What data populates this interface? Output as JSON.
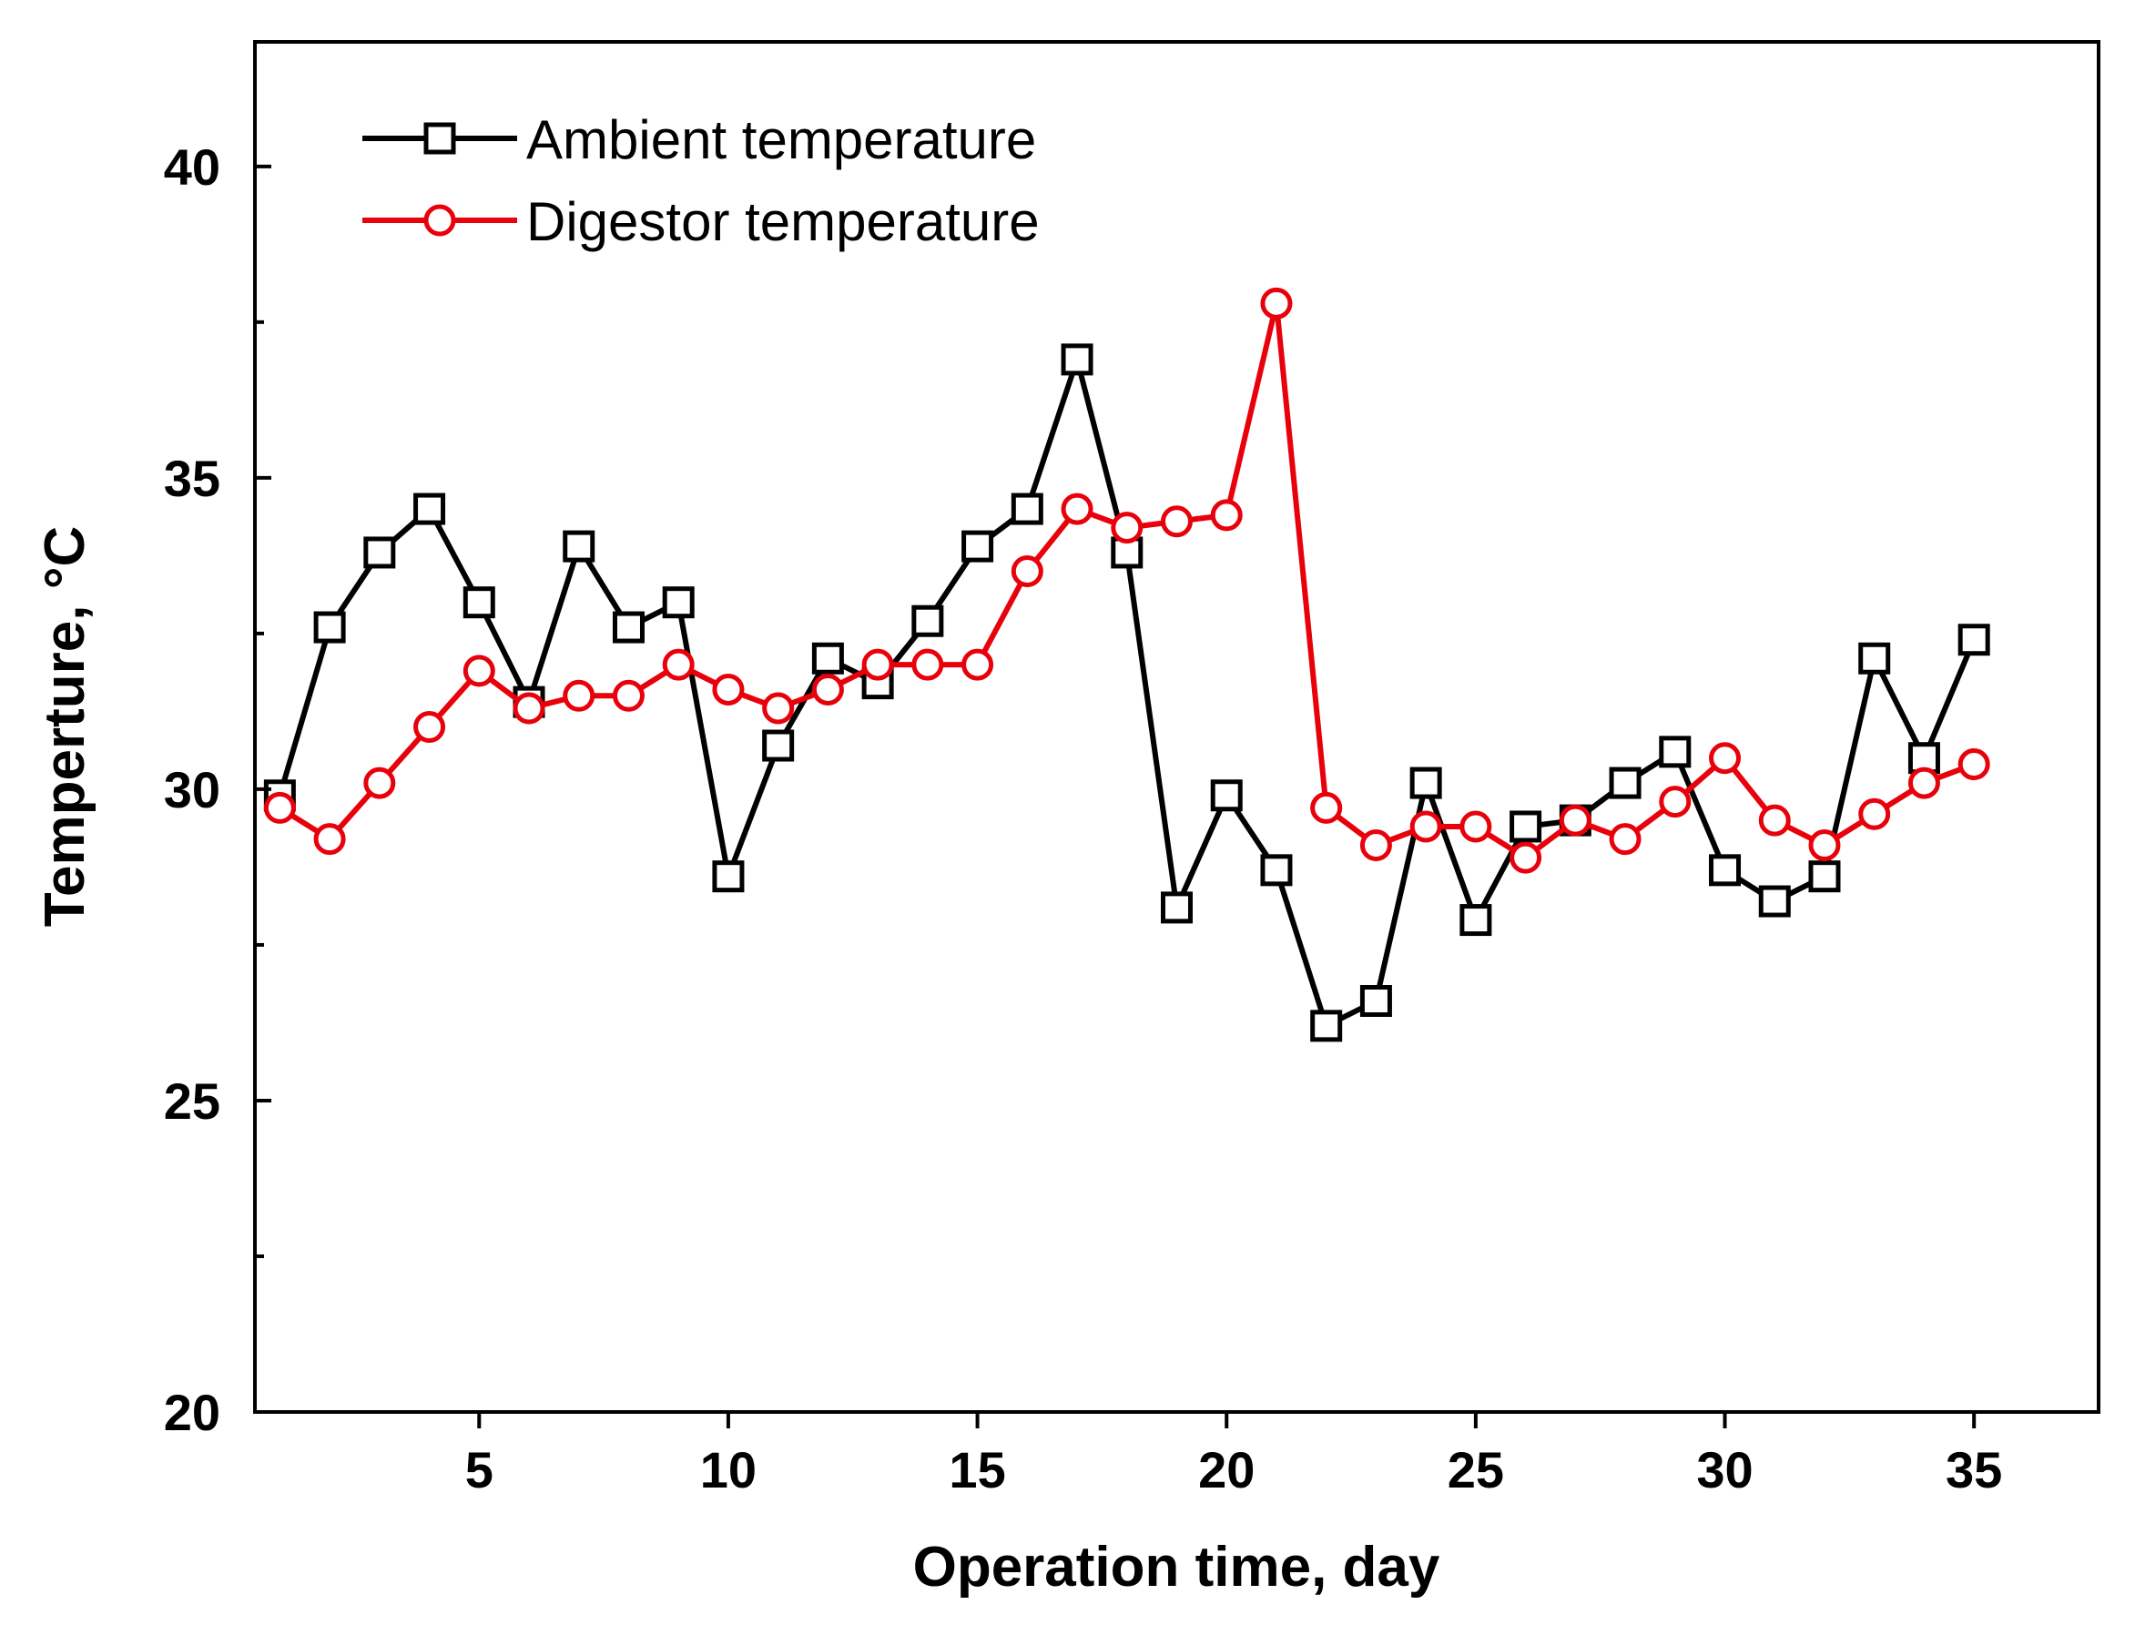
{
  "chart_data": {
    "type": "line",
    "title": "",
    "xlabel": "Operation time, day",
    "ylabel": "Temperture, °C",
    "xlim": [
      0.5,
      37.5
    ],
    "ylim": [
      20,
      42
    ],
    "xticks": [
      5,
      10,
      15,
      20,
      25,
      30,
      35
    ],
    "xtick_labels": [
      "5",
      "10",
      "15",
      "20",
      "25",
      "30",
      "35"
    ],
    "yticks": [
      20,
      25,
      30,
      35,
      40
    ],
    "ytick_labels": [
      "20",
      "25",
      "30",
      "35",
      "40"
    ],
    "y_minor_ticks": [
      22.5,
      27.5,
      32.5,
      37.5
    ],
    "legend_position": "top-left",
    "x": [
      1,
      2,
      3,
      4,
      5,
      6,
      7,
      8,
      9,
      10,
      11,
      12,
      13,
      14,
      15,
      16,
      17,
      18,
      19,
      20,
      21,
      22,
      23,
      24,
      25,
      26,
      27,
      28,
      29,
      30,
      31,
      32,
      33,
      34,
      35
    ],
    "series": [
      {
        "name": "Ambient temperature",
        "color": "#000000",
        "marker": "square",
        "values": [
          29.9,
          32.6,
          33.8,
          34.5,
          33.0,
          31.4,
          33.9,
          32.6,
          33.0,
          28.6,
          30.7,
          32.1,
          31.7,
          32.7,
          33.9,
          34.5,
          36.9,
          33.8,
          28.1,
          29.9,
          28.7,
          26.2,
          26.6,
          30.1,
          27.9,
          29.4,
          29.5,
          30.1,
          30.6,
          28.7,
          28.2,
          28.6,
          32.1,
          30.5,
          32.4
        ]
      },
      {
        "name": "Digestor temperature",
        "color": "#e8000b",
        "marker": "circle",
        "values": [
          29.7,
          29.2,
          30.1,
          31.0,
          31.9,
          31.3,
          31.5,
          31.5,
          32.0,
          31.6,
          31.3,
          31.6,
          32.0,
          32.0,
          32.0,
          33.5,
          34.5,
          34.2,
          34.3,
          34.4,
          37.8,
          29.7,
          29.1,
          29.4,
          29.4,
          28.9,
          29.5,
          29.2,
          29.8,
          30.5,
          29.5,
          29.1,
          29.6,
          30.1,
          30.4
        ]
      }
    ]
  }
}
